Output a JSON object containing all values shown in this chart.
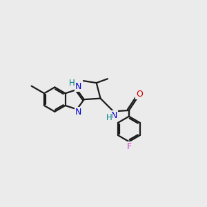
{
  "bg_color": "#ebebeb",
  "bond_color": "#1a1a1a",
  "N_color": "#0000cc",
  "O_color": "#cc0000",
  "F_color": "#cc44cc",
  "H_color": "#008080",
  "line_width": 1.6,
  "figsize": [
    3.0,
    3.0
  ],
  "dpi": 100,
  "xlim": [
    0,
    10
  ],
  "ylim": [
    0,
    10
  ]
}
